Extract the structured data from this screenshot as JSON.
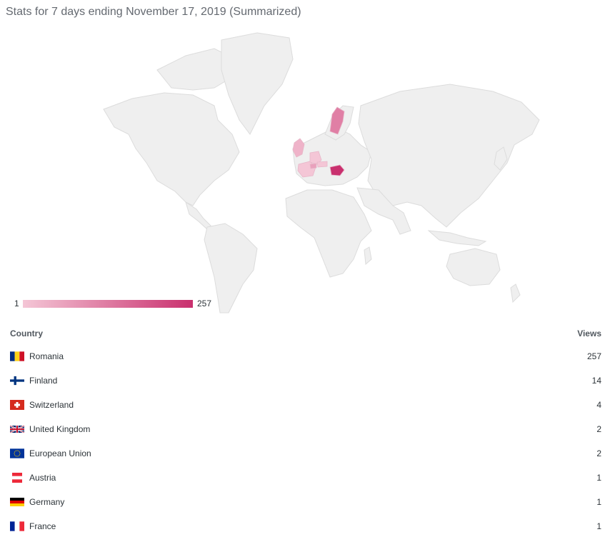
{
  "page": {
    "title": "Stats for 7 days ending November 17, 2019 (Summarized)"
  },
  "legend": {
    "min": "1",
    "max": "257",
    "color_min": "#f4c6d6",
    "color_max": "#c9306e"
  },
  "table": {
    "headers": {
      "country": "Country",
      "views": "Views"
    },
    "rows": [
      {
        "country": "Romania",
        "views": "257",
        "flag": "flag-romania-icon"
      },
      {
        "country": "Finland",
        "views": "14",
        "flag": "flag-finland-icon"
      },
      {
        "country": "Switzerland",
        "views": "4",
        "flag": "flag-switzerland-icon"
      },
      {
        "country": "United Kingdom",
        "views": "2",
        "flag": "flag-united-kingdom-icon"
      },
      {
        "country": "European Union",
        "views": "2",
        "flag": "flag-european-union-icon"
      },
      {
        "country": "Austria",
        "views": "1",
        "flag": "flag-austria-icon"
      },
      {
        "country": "Germany",
        "views": "1",
        "flag": "flag-germany-icon"
      },
      {
        "country": "France",
        "views": "1",
        "flag": "flag-france-icon"
      }
    ]
  },
  "chart_data": {
    "type": "choropleth",
    "scale": {
      "min": 1,
      "max": 257
    },
    "regions": [
      {
        "name": "Romania",
        "value": 257
      },
      {
        "name": "Finland",
        "value": 14
      },
      {
        "name": "Switzerland",
        "value": 4
      },
      {
        "name": "United Kingdom",
        "value": 2
      },
      {
        "name": "Austria",
        "value": 1
      },
      {
        "name": "Germany",
        "value": 1
      },
      {
        "name": "France",
        "value": 1
      }
    ],
    "colors": {
      "land": "#efefef",
      "border": "#dcdcdc"
    }
  }
}
